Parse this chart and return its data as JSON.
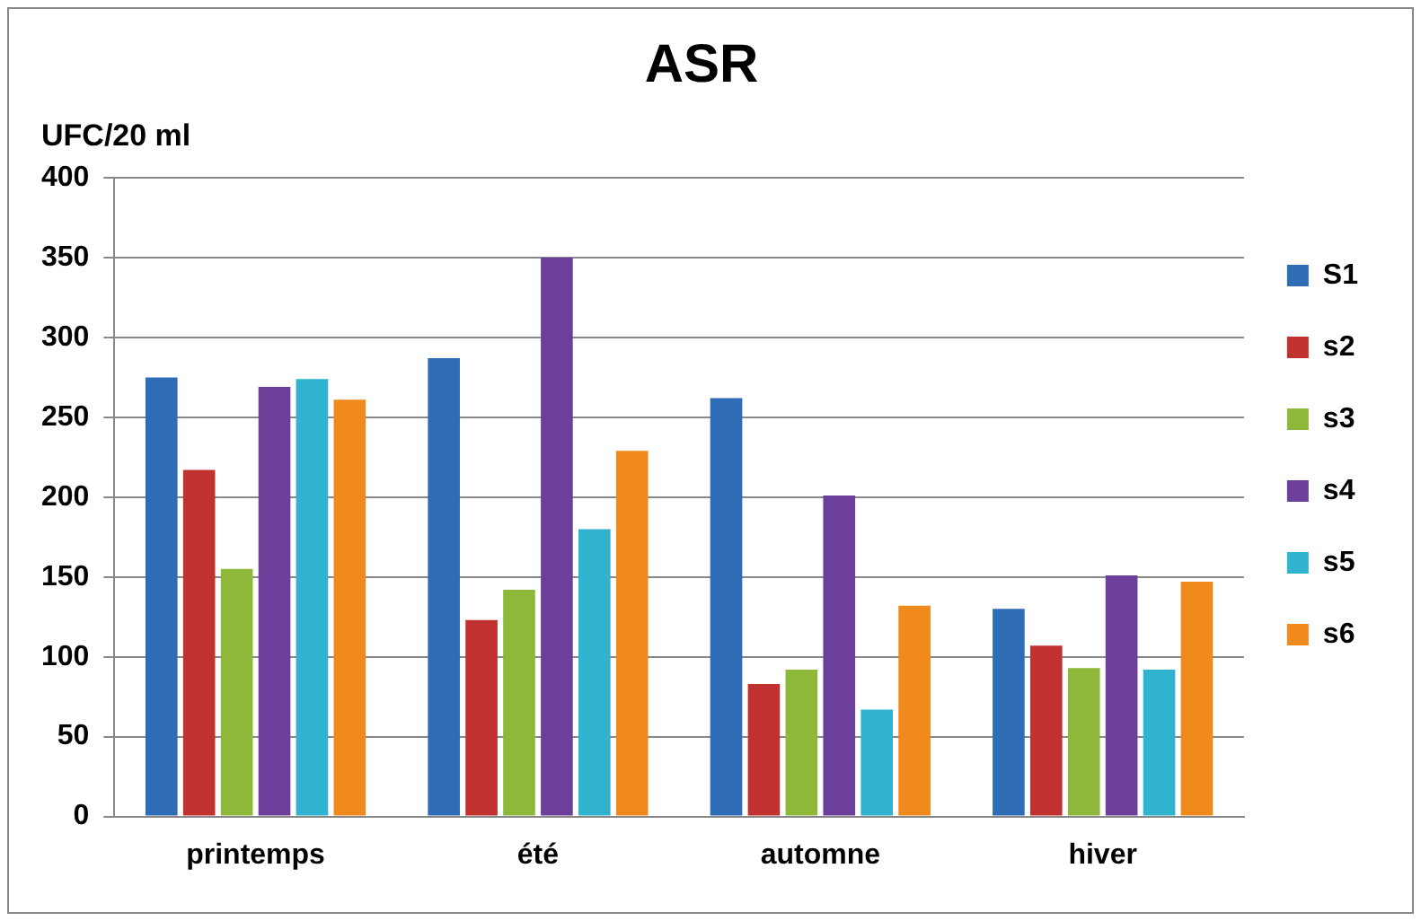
{
  "chart_data": {
    "type": "bar",
    "title": "ASR",
    "ylabel": "UFC/20 ml",
    "categories": [
      "printemps",
      "été",
      "automne",
      "hiver"
    ],
    "series": [
      {
        "name": "S1",
        "color": "#2e6db5",
        "values": [
          275,
          287,
          262,
          130
        ]
      },
      {
        "name": "s2",
        "color": "#c0312f",
        "values": [
          217,
          123,
          83,
          107
        ]
      },
      {
        "name": "s3",
        "color": "#8db83a",
        "values": [
          155,
          142,
          92,
          93
        ]
      },
      {
        "name": "s4",
        "color": "#6b3f9a",
        "values": [
          269,
          350,
          201,
          151
        ]
      },
      {
        "name": "s5",
        "color": "#2fb3cf",
        "values": [
          274,
          180,
          67,
          92
        ]
      },
      {
        "name": "s6",
        "color": "#f08a1d",
        "values": [
          261,
          229,
          132,
          147
        ]
      }
    ],
    "ylim": [
      0,
      400
    ],
    "yticks": [
      0,
      50,
      100,
      150,
      200,
      250,
      300,
      350,
      400
    ],
    "grid": "y",
    "legend": "right"
  }
}
